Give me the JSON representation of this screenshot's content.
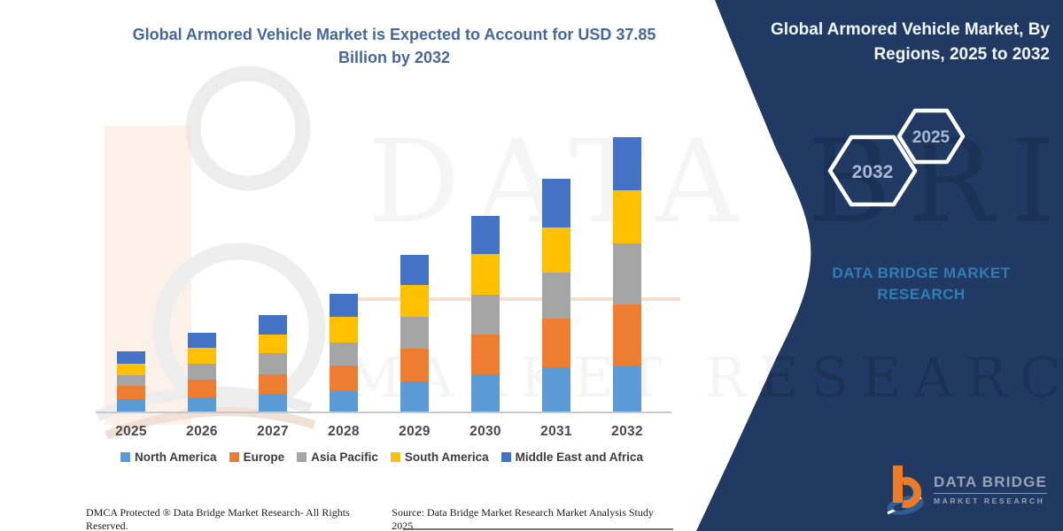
{
  "colors": {
    "panel_navy": "#203a63",
    "title_blue": "#44679e",
    "brand_teal": "#2e7db4",
    "logo_orange": "#e87c2b",
    "logo_swoosh_blue": "#2f5e95",
    "axis_gray": "#c9c9c9"
  },
  "main_title": "Global Armored Vehicle Market is Expected to Account for USD 37.85 Billion by 2032",
  "panel": {
    "title": "Global Armored Vehicle Market, By Regions, 2025 to 2032",
    "hexagons": [
      {
        "label": "2032"
      },
      {
        "label": "2025"
      }
    ],
    "brand_line1": "DATA BRIDGE MARKET",
    "brand_line2": "RESEARCH"
  },
  "logo": {
    "title": "DATA BRIDGE",
    "subtitle": "MARKET RESEARCH"
  },
  "watermark": {
    "row1": "DATA BRIDGE",
    "row2": "MARKET RESEARCH"
  },
  "chart_data": {
    "type": "bar",
    "stacked": true,
    "title": "Global Armored Vehicle Market is Expected to Account for USD 37.85 Billion by 2032",
    "unit": "USD billion",
    "categories": [
      "2025",
      "2026",
      "2027",
      "2028",
      "2029",
      "2030",
      "2031",
      "2032"
    ],
    "series": [
      {
        "name": "North America",
        "color": "#5B9BD5",
        "values": [
          1.7,
          2.0,
          2.4,
          2.8,
          4.2,
          5.1,
          6.1,
          6.25
        ]
      },
      {
        "name": "Europe",
        "color": "#ED7D31",
        "values": [
          1.8,
          2.4,
          2.7,
          3.5,
          4.4,
          5.5,
          6.7,
          8.5
        ]
      },
      {
        "name": "Asia Pacific",
        "color": "#A5A5A5",
        "values": [
          1.5,
          2.2,
          3.0,
          3.2,
          4.4,
          5.5,
          6.4,
          8.4
        ]
      },
      {
        "name": "South America",
        "color": "#FFC000",
        "values": [
          1.6,
          2.2,
          2.5,
          3.5,
          4.4,
          5.6,
          6.2,
          7.3
        ]
      },
      {
        "name": "Middle East and Africa",
        "color": "#4472C4",
        "values": [
          1.7,
          2.1,
          2.7,
          3.2,
          4.2,
          5.2,
          6.7,
          7.4
        ]
      }
    ],
    "totals": [
      8.3,
      10.9,
      13.3,
      16.2,
      21.6,
      26.9,
      32.1,
      37.85
    ],
    "ylim": [
      0,
      40
    ],
    "x_axis_labels_visible": true,
    "y_axis_visible": false,
    "grid": false,
    "legend_position": "bottom"
  },
  "footer": {
    "left": "DMCA Protected ® Data Bridge Market Research-  All Rights Reserved.",
    "right": "Source: Data Bridge Market Research  Market Analysis Study 2025"
  }
}
